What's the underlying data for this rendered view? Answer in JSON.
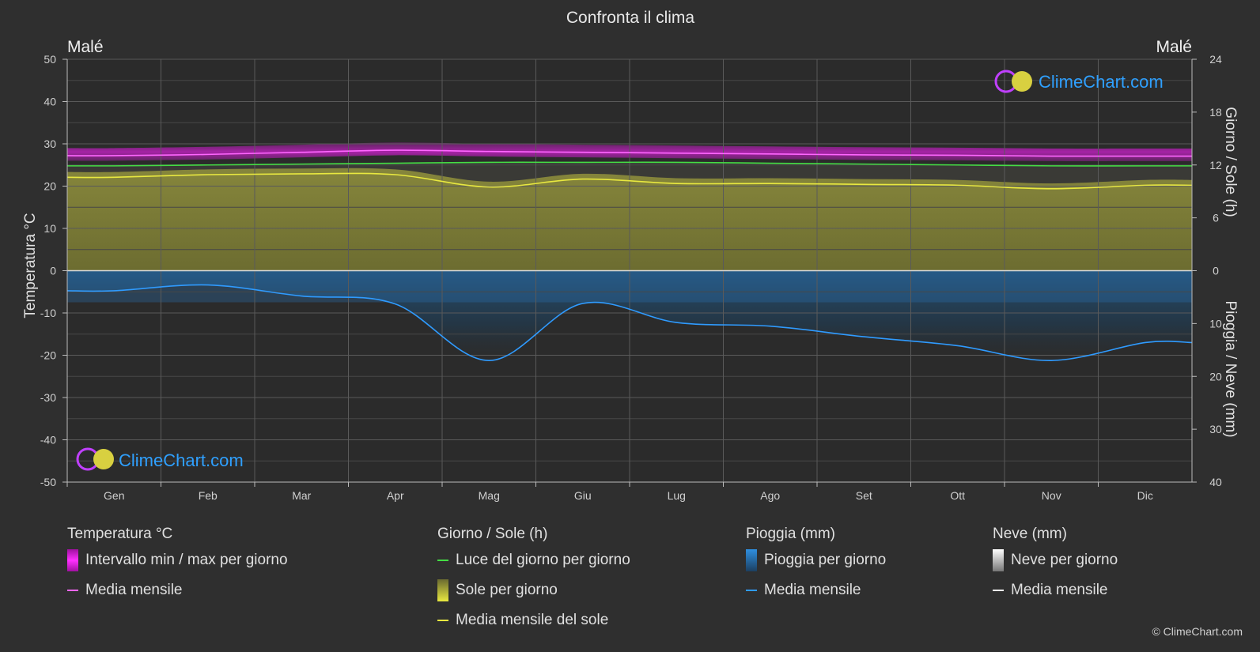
{
  "header": {
    "title": "Confronta il clima",
    "location_left": "Malé",
    "location_right": "Malé"
  },
  "watermark": {
    "text": "ClimeChart.com",
    "copyright": "© ClimeChart.com"
  },
  "colors": {
    "background": "#2f2f2f",
    "temp_range": "#e020e0",
    "temp_mean": "#ff66ff",
    "daylight": "#44dd44",
    "sunshine_fill": "#8f8f3a",
    "sunshine_mean": "#e8e840",
    "rain_fill": "#2b6ea8",
    "rain_mean": "#2f9bff",
    "snow_mean": "#ffffff",
    "brand": "#2fa0ff"
  },
  "chart_data": {
    "type": "line",
    "title": "Confronta il clima",
    "months": [
      "Gen",
      "Feb",
      "Mar",
      "Apr",
      "Mag",
      "Giu",
      "Lug",
      "Ago",
      "Set",
      "Ott",
      "Nov",
      "Dic"
    ],
    "left_axis": {
      "label": "Temperatura °C",
      "range": [
        -50,
        50
      ],
      "ticks": [
        "50",
        "40",
        "30",
        "20",
        "10",
        "0",
        "-10",
        "-20",
        "-30",
        "-40",
        "-50"
      ]
    },
    "right_axis_top": {
      "label": "Giorno / Sole (h)",
      "range": [
        0,
        24
      ],
      "ticks": [
        "24",
        "18",
        "12",
        "6",
        "0"
      ]
    },
    "right_axis_bottom": {
      "label": "Pioggia / Neve (mm)",
      "range": [
        0,
        40
      ],
      "ticks": [
        "0",
        "10",
        "20",
        "30",
        "40"
      ]
    },
    "grid": true,
    "series": [
      {
        "name": "Media mensile",
        "group": "Temperatura °C",
        "unit": "°C",
        "values": [
          27.2,
          27.5,
          28.0,
          28.5,
          28.2,
          28.0,
          27.8,
          27.6,
          27.4,
          27.3,
          27.1,
          27.1
        ]
      },
      {
        "name": "Luce del giorno per giorno",
        "group": "Giorno / Sole (h)",
        "unit": "h",
        "values": [
          11.9,
          12.0,
          12.1,
          12.2,
          12.3,
          12.3,
          12.3,
          12.2,
          12.1,
          12.0,
          11.9,
          11.9
        ]
      },
      {
        "name": "Media mensile del sole",
        "group": "Giorno / Sole (h)",
        "unit": "h",
        "values": [
          10.6,
          10.9,
          11.0,
          10.9,
          9.5,
          10.4,
          9.9,
          9.9,
          9.8,
          9.7,
          9.3,
          9.7
        ]
      },
      {
        "name": "Media mensile",
        "group": "Pioggia (mm)",
        "unit": "mm",
        "values": [
          3.8,
          2.7,
          4.8,
          6.3,
          17.0,
          6.2,
          9.8,
          10.5,
          12.5,
          14.2,
          17.0,
          13.6
        ]
      }
    ]
  },
  "legend": {
    "temperature": {
      "heading": "Temperatura °C",
      "items": [
        "Intervallo min / max per giorno",
        "Media mensile"
      ]
    },
    "daylight": {
      "heading": "Giorno / Sole (h)",
      "items": [
        "Luce del giorno per giorno",
        "Sole per giorno",
        "Media mensile del sole"
      ]
    },
    "rain": {
      "heading": "Pioggia (mm)",
      "items": [
        "Pioggia per giorno",
        "Media mensile"
      ]
    },
    "snow": {
      "heading": "Neve (mm)",
      "items": [
        "Neve per giorno",
        "Media mensile"
      ]
    }
  }
}
